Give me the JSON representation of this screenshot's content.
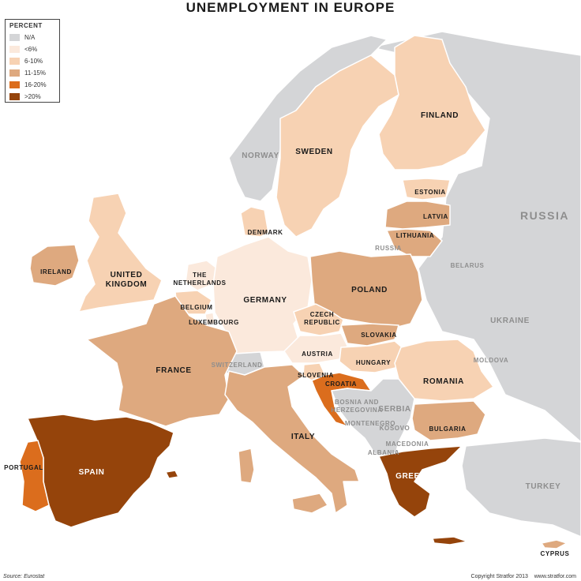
{
  "title": "UNEMPLOYMENT IN EUROPE",
  "legend": {
    "title": "PERCENT",
    "items": [
      {
        "label": "N/A",
        "color": "#d4d5d7"
      },
      {
        "label": "<6%",
        "color": "#fbe9dc"
      },
      {
        "label": "6-10%",
        "color": "#f7d2b3"
      },
      {
        "label": "11-15%",
        "color": "#dea97f"
      },
      {
        "label": "16-20%",
        "color": "#db6d1d"
      },
      {
        "label": ">20%",
        "color": "#95440b"
      }
    ]
  },
  "countries": [
    {
      "name": "NORWAY",
      "category": "N/A"
    },
    {
      "name": "SWEDEN",
      "category": "6-10%"
    },
    {
      "name": "FINLAND",
      "category": "6-10%"
    },
    {
      "name": "RUSSIA",
      "category": "N/A"
    },
    {
      "name": "ESTONIA",
      "category": "6-10%"
    },
    {
      "name": "LATVIA",
      "category": "11-15%"
    },
    {
      "name": "LITHUANIA",
      "category": "11-15%"
    },
    {
      "name": "RUSSIA",
      "category": "N/A"
    },
    {
      "name": "DENMARK",
      "category": "6-10%"
    },
    {
      "name": "UNITED KINGDOM",
      "category": "6-10%"
    },
    {
      "name": "IRELAND",
      "category": "11-15%"
    },
    {
      "name": "THE NETHERLANDS",
      "category": "<6%"
    },
    {
      "name": "BELGIUM",
      "category": "6-10%"
    },
    {
      "name": "LUXEMBOURG",
      "category": "<6%"
    },
    {
      "name": "GERMANY",
      "category": "<6%"
    },
    {
      "name": "POLAND",
      "category": "11-15%"
    },
    {
      "name": "BELARUS",
      "category": "N/A"
    },
    {
      "name": "UKRAINE",
      "category": "N/A"
    },
    {
      "name": "CZECH REPUBLIC",
      "category": "6-10%"
    },
    {
      "name": "SLOVAKIA",
      "category": "11-15%"
    },
    {
      "name": "AUSTRIA",
      "category": "<6%"
    },
    {
      "name": "HUNGARY",
      "category": "6-10%"
    },
    {
      "name": "MOLDOVA",
      "category": "N/A"
    },
    {
      "name": "ROMANIA",
      "category": "6-10%"
    },
    {
      "name": "FRANCE",
      "category": "11-15%"
    },
    {
      "name": "SWITZERLAND",
      "category": "N/A"
    },
    {
      "name": "SLOVENIA",
      "category": "6-10%"
    },
    {
      "name": "CROATIA",
      "category": "16-20%"
    },
    {
      "name": "BOSNIA AND HERZEGOVINA",
      "category": "N/A"
    },
    {
      "name": "SERBIA",
      "category": "N/A"
    },
    {
      "name": "MONTENEGRO",
      "category": "N/A"
    },
    {
      "name": "KOSOVO",
      "category": "N/A"
    },
    {
      "name": "BULGARIA",
      "category": "11-15%"
    },
    {
      "name": "MACEDONIA",
      "category": "N/A"
    },
    {
      "name": "ALBANIA",
      "category": "N/A"
    },
    {
      "name": "ITALY",
      "category": "11-15%"
    },
    {
      "name": "SPAIN",
      "category": ">20%"
    },
    {
      "name": "PORTUGAL",
      "category": "16-20%"
    },
    {
      "name": "GREECE",
      "category": ">20%"
    },
    {
      "name": "TURKEY",
      "category": "N/A"
    },
    {
      "name": "CYPRUS",
      "category": "11-15%"
    }
  ],
  "footer": {
    "source": "Source: Eurostat",
    "copyright": "Copyright Stratfor 2013",
    "url": "www.stratfor.com"
  }
}
